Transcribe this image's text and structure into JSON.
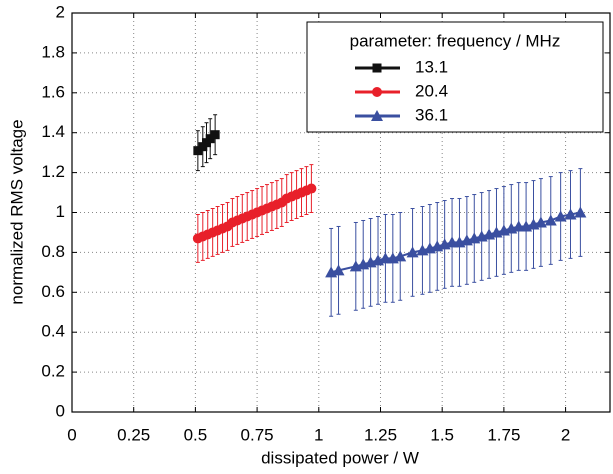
{
  "chart_data": {
    "type": "scatter",
    "xlabel": "dissipated power / W",
    "ylabel": "normalized RMS voltage",
    "xlim": [
      0,
      2.18
    ],
    "ylim": [
      0,
      2
    ],
    "xticks": [
      0,
      0.25,
      0.5,
      0.75,
      1,
      1.25,
      1.5,
      1.75,
      2
    ],
    "yticks": [
      0,
      0.2,
      0.4,
      0.6,
      0.8,
      1,
      1.2,
      1.4,
      1.6,
      1.8,
      2
    ],
    "grid": true,
    "legend_title": "parameter: frequency / MHz",
    "legend_position": "upper right",
    "series": [
      {
        "name": "13.1",
        "color": "#111111",
        "marker": "square",
        "x": [
          0.51,
          0.53,
          0.545,
          0.56,
          0.58
        ],
        "values": [
          1.31,
          1.33,
          1.35,
          1.37,
          1.39
        ],
        "errors": [
          0.1,
          0.1,
          0.1,
          0.1,
          0.1
        ]
      },
      {
        "name": "20.4",
        "color": "#e8202a",
        "marker": "circle",
        "x": [
          0.51,
          0.53,
          0.55,
          0.57,
          0.59,
          0.61,
          0.63,
          0.65,
          0.67,
          0.69,
          0.71,
          0.73,
          0.75,
          0.77,
          0.79,
          0.81,
          0.83,
          0.85,
          0.87,
          0.89,
          0.91,
          0.93,
          0.95,
          0.97
        ],
        "values": [
          0.87,
          0.88,
          0.89,
          0.9,
          0.91,
          0.92,
          0.93,
          0.95,
          0.96,
          0.97,
          0.98,
          0.99,
          1.0,
          1.01,
          1.02,
          1.03,
          1.04,
          1.05,
          1.07,
          1.08,
          1.09,
          1.1,
          1.11,
          1.12
        ],
        "errors": [
          0.12,
          0.12,
          0.12,
          0.12,
          0.12,
          0.12,
          0.12,
          0.12,
          0.12,
          0.12,
          0.12,
          0.12,
          0.12,
          0.12,
          0.12,
          0.12,
          0.12,
          0.12,
          0.12,
          0.12,
          0.12,
          0.12,
          0.12,
          0.12
        ]
      },
      {
        "name": "36.1",
        "color": "#3a4fa0",
        "marker": "triangle",
        "x": [
          1.05,
          1.08,
          1.15,
          1.18,
          1.21,
          1.24,
          1.27,
          1.3,
          1.33,
          1.38,
          1.42,
          1.45,
          1.48,
          1.51,
          1.54,
          1.57,
          1.6,
          1.63,
          1.66,
          1.69,
          1.72,
          1.75,
          1.78,
          1.81,
          1.84,
          1.87,
          1.9,
          1.94,
          1.98,
          2.02,
          2.06
        ],
        "values": [
          0.7,
          0.71,
          0.73,
          0.74,
          0.75,
          0.76,
          0.77,
          0.77,
          0.78,
          0.8,
          0.81,
          0.82,
          0.83,
          0.84,
          0.85,
          0.85,
          0.86,
          0.87,
          0.88,
          0.89,
          0.9,
          0.91,
          0.92,
          0.93,
          0.93,
          0.94,
          0.95,
          0.96,
          0.98,
          0.99,
          1.0
        ],
        "errors": [
          0.22,
          0.22,
          0.22,
          0.22,
          0.22,
          0.22,
          0.22,
          0.22,
          0.22,
          0.22,
          0.22,
          0.22,
          0.22,
          0.22,
          0.22,
          0.22,
          0.22,
          0.22,
          0.22,
          0.22,
          0.22,
          0.22,
          0.22,
          0.22,
          0.22,
          0.22,
          0.22,
          0.22,
          0.22,
          0.22,
          0.22
        ]
      }
    ]
  }
}
